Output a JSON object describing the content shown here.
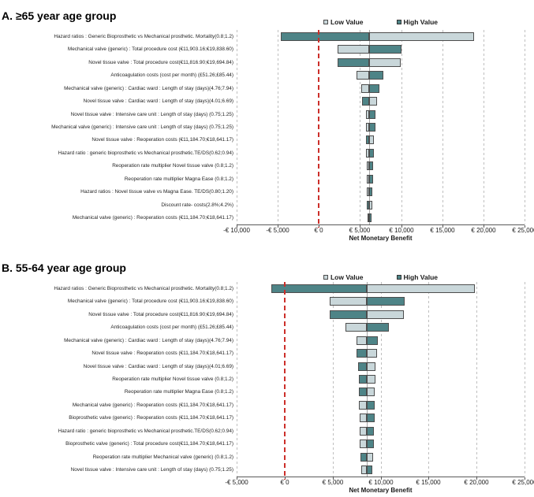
{
  "page": {
    "background": "#ffffff"
  },
  "colors": {
    "low_fill": "#c9d7da",
    "high_fill": "#4e8487",
    "bar_border": "#4d4d4d",
    "grid_line": "#bfbfbf",
    "zero_line": "#cc2f2a",
    "axis_line": "#595959",
    "pivot_line": "#a6a6a6",
    "text": "#1a1a1a"
  },
  "legend": {
    "low_label": "Low Value",
    "high_label": "High Value"
  },
  "chart_data": [
    {
      "type": "bar",
      "subtype": "tornado",
      "panel": "A",
      "title": "A. ≥65 year age group",
      "xlabel": "Net Monetary Benefit",
      "xlim": [
        -10000,
        25000
      ],
      "tick_values": [
        -10000,
        -5000,
        0,
        5000,
        10000,
        15000,
        20000,
        25000
      ],
      "tick_labels": [
        "-€ 10,000",
        "-€ 5,000",
        "€ 0",
        "€ 5,000",
        "€ 10,000",
        "€ 15,000",
        "€ 20,000",
        "€ 25,000"
      ],
      "base_value": 6140,
      "zero_value": 0,
      "grid": true,
      "legend_position": "top",
      "legend": [
        "Low Value",
        "High Value"
      ],
      "rows": [
        {
          "label": "Hazard ratios : Generic Bioprosthetic vs Mechanical prosthetic. Mortality(0.8;1.2)",
          "left": -4650,
          "right": 18900,
          "left_side": "high"
        },
        {
          "label": "Mechanical valve (generic) : Total procedure cost (€11,903.16;€19,838.60)",
          "left": 2250,
          "right": 10050,
          "left_side": "low"
        },
        {
          "label": "Novel tissue valve : Total procedure cost(€11,816.90;€19,694.84)",
          "left": 2250,
          "right": 9900,
          "left_side": "high"
        },
        {
          "label": "Anticoagulation costs (cost per month) (£51.26;£85.44)",
          "left": 4550,
          "right": 7800,
          "left_side": "low"
        },
        {
          "label": "Mechanical valve (generic) : Cardiac ward : Length of stay (days)(4.76;7.94)",
          "left": 5180,
          "right": 7330,
          "left_side": "low"
        },
        {
          "label": "Novel tissue valve : Cardiac ward : Length of stay (days)(4.01;6.69)",
          "left": 5250,
          "right": 7040,
          "left_side": "high"
        },
        {
          "label": "Novel tissue valve : Intensive care unit : Length of stay (days) (0.75;1.25)",
          "left": 5730,
          "right": 6880,
          "left_side": "low"
        },
        {
          "label": "Mechanical valve (generic) : Intensive care unit : Length of stay (days) (0.75;1.25)",
          "left": 5730,
          "right": 6860,
          "left_side": "low"
        },
        {
          "label": "Novel tissue valve : Reoperation costs (€11,184.70;€18,641.17)",
          "left": 5740,
          "right": 6690,
          "left_side": "high"
        },
        {
          "label": "Hazard ratio : generic bioprosthetic vs Mechanical prosthetic.TE/DS(0.62;0.94)",
          "left": 5760,
          "right": 6680,
          "left_side": "low"
        },
        {
          "label": "Reoperation rate multiplier Novel tissue valve (0.8;1.2)",
          "left": 5780,
          "right": 6600,
          "left_side": "low"
        },
        {
          "label": "Reoperation rate multiplier Magna Ease (0.8;1.2)",
          "left": 5800,
          "right": 6550,
          "left_side": "low"
        },
        {
          "label": "Hazard ratios : Novel tissue valve vs Magna Ease. TE/DS(0.80;1.20)",
          "left": 5830,
          "right": 6500,
          "left_side": "low"
        },
        {
          "label": "Discount rate- costs(2.8%;4.2%)",
          "left": 5840,
          "right": 6460,
          "left_side": "high"
        },
        {
          "label": "Mechanical valve (generic) : Reoperation costs (€11,184.70;€18,641.17)",
          "left": 5880,
          "right": 6410,
          "left_side": "low"
        }
      ]
    },
    {
      "type": "bar",
      "subtype": "tornado",
      "panel": "B",
      "title": "B. 55-64 year age group",
      "xlabel": "Net Monetary Benefit",
      "xlim": [
        -5000,
        25000
      ],
      "tick_values": [
        -5000,
        0,
        5000,
        10000,
        15000,
        20000,
        25000
      ],
      "tick_labels": [
        "-€ 5,000",
        "€ 0",
        "€ 5,000",
        "€ 10,000",
        "€ 15,000",
        "€ 20,000",
        "€ 25,000"
      ],
      "base_value": 8560,
      "zero_value": 0,
      "grid": true,
      "legend_position": "top",
      "legend": [
        "Low Value",
        "High Value"
      ],
      "rows": [
        {
          "label": "Hazard ratios : Generic Bioprosthetic vs Mechanical prosthetic. Mortality(0.8;1.2)",
          "left": -1350,
          "right": 19800,
          "left_side": "high"
        },
        {
          "label": "Mechanical valve (generic) : Total procedure cost (€11,903.16;€19,838.60)",
          "left": 4670,
          "right": 12480,
          "left_side": "low"
        },
        {
          "label": "Novel tissue valve : Total procedure cost(€11,816.90;€19,694.84)",
          "left": 4700,
          "right": 12400,
          "left_side": "high"
        },
        {
          "label": "Anticoagulation costs (cost per month) (£51.26;£85.44)",
          "left": 6320,
          "right": 10840,
          "left_side": "low"
        },
        {
          "label": "Mechanical valve (generic) : Cardiac ward : Length of stay (days)(4.76;7.94)",
          "left": 7470,
          "right": 9710,
          "left_side": "low"
        },
        {
          "label": "Novel tissue valve : Reoperation costs (€11,184.70;€18,641.17)",
          "left": 7520,
          "right": 9630,
          "left_side": "high"
        },
        {
          "label": "Novel tissue valve : Cardiac ward : Length of stay (days)(4.01;6.69)",
          "left": 7660,
          "right": 9470,
          "left_side": "high"
        },
        {
          "label": "Reoperation rate multiplier Novel tissue valve (0.8;1.2)",
          "left": 7700,
          "right": 9440,
          "left_side": "high"
        },
        {
          "label": "Reoperation rate multiplier Magna Ease (0.8;1.2)",
          "left": 7720,
          "right": 9420,
          "left_side": "high"
        },
        {
          "label": "Mechanical valve (generic) : Reoperation costs (€11,184.70;€18,641.17)",
          "left": 7760,
          "right": 9400,
          "left_side": "low"
        },
        {
          "label": "Bioprosthetic valve (generic) : Reoperation costs (€11,184.70;€18,641.17)",
          "left": 7800,
          "right": 9370,
          "left_side": "low"
        },
        {
          "label": "Hazard ratio : generic bioprosthetic vs Mechanical prosthetic.TE/DS(0.62;0.94)",
          "left": 7830,
          "right": 9340,
          "left_side": "low"
        },
        {
          "label": "Bioprosthetic valve (generic) : Total procedure cost(€11,184.70;€18,641.17)",
          "left": 7860,
          "right": 9300,
          "left_side": "low"
        },
        {
          "label": "Reoperation rate multiplier Mechanical valve (generic) (0.8;1.2)",
          "left": 7900,
          "right": 9260,
          "left_side": "high"
        },
        {
          "label": "Novel tissue valve : Intensive care unit : Length of stay (days) (0.75;1.25)",
          "left": 7950,
          "right": 9150,
          "left_side": "low"
        }
      ]
    }
  ]
}
